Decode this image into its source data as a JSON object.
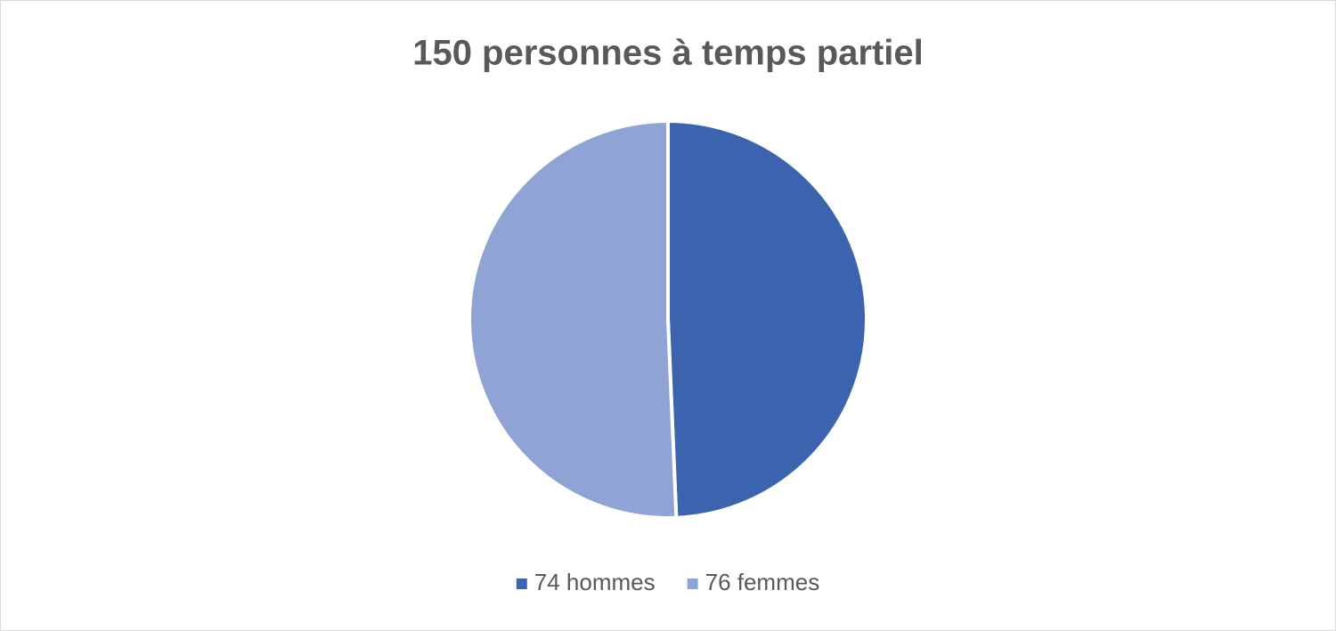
{
  "chart_data": {
    "type": "pie",
    "title": "150 personnes à temps partiel",
    "categories": [
      "74 hommes",
      "76 femmes"
    ],
    "values": [
      74,
      76
    ],
    "colors": [
      "#3c64ae",
      "#8fa4d4"
    ],
    "legend": "bottom"
  }
}
